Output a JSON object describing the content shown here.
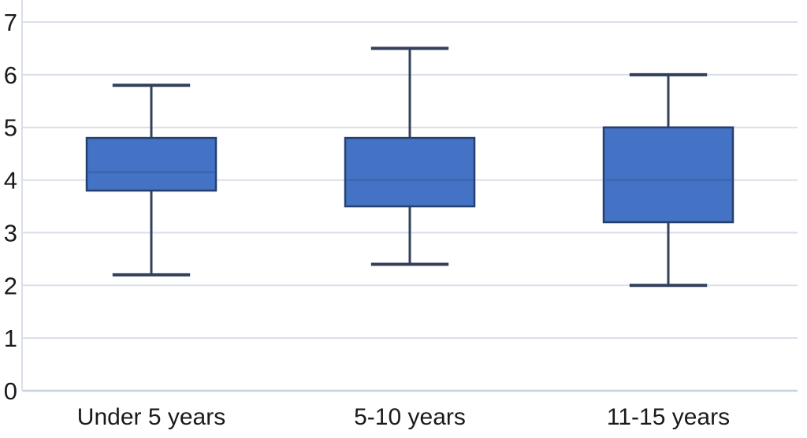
{
  "chart_data": {
    "type": "boxplot",
    "orientation": "vertical",
    "title": "",
    "xlabel": "",
    "ylabel": "",
    "categories": [
      "Under 5 years",
      "5-10 years",
      "11-15 years"
    ],
    "series": [
      {
        "name": "Under 5 years",
        "whisker_low": 2.2,
        "q1": 3.8,
        "median": 4.15,
        "q3": 4.8,
        "whisker_high": 5.8
      },
      {
        "name": "5-10 years",
        "whisker_low": 2.4,
        "q1": 3.5,
        "median": 4.0,
        "q3": 4.8,
        "whisker_high": 6.5
      },
      {
        "name": "11-15 years",
        "whisker_low": 2.0,
        "q1": 3.2,
        "median": 4.0,
        "q3": 5.0,
        "whisker_high": 6.0
      }
    ],
    "ylim": [
      0,
      7
    ],
    "yticks": [
      0,
      1,
      2,
      3,
      4,
      5,
      6,
      7
    ],
    "grid": true,
    "legend": "none",
    "colors": {
      "box_fill": "#4472C4",
      "box_border": "#25406D",
      "median": "#3A66AE",
      "whisker": "#33405C",
      "gridline": "#D9DEE9",
      "axis": "#C7D0E0",
      "text": "#1A1A1A"
    }
  }
}
